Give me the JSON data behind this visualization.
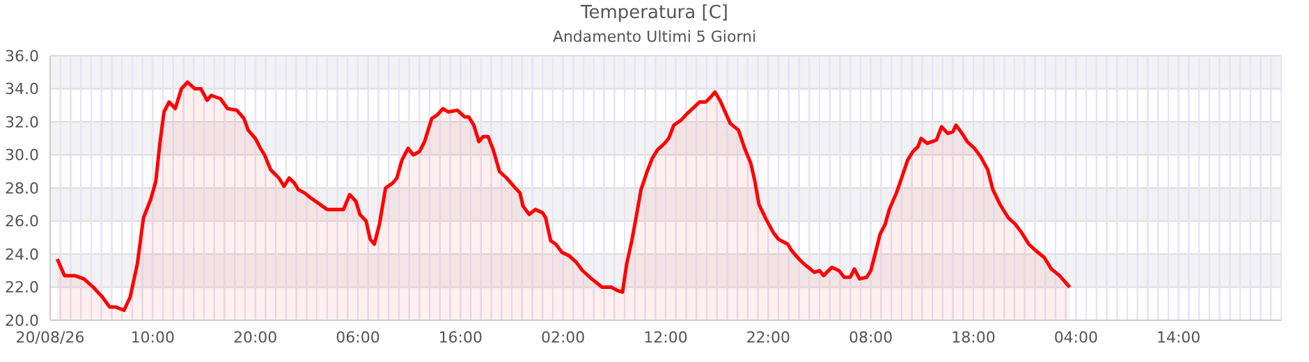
{
  "chart_data": {
    "type": "area",
    "title": "Temperatura [C]",
    "subtitle": "Andamento Ultimi 5 Giorni",
    "x": [
      "--08-20T00:42",
      "--08-20T01:24",
      "--08-20T02:24",
      "--08-20T03:18",
      "--08-20T04:12",
      "--08-20T05:06",
      "--08-20T05:48",
      "--08-20T06:24",
      "--08-20T07:12",
      "--08-20T07:48",
      "--08-20T08:30",
      "--08-20T09:06",
      "--08-20T09:48",
      "--08-20T10:18",
      "--08-20T10:42",
      "--08-20T11:06",
      "--08-20T11:36",
      "--08-20T12:12",
      "--08-20T12:48",
      "--08-20T13:24",
      "--08-20T14:06",
      "--08-20T14:42",
      "--08-20T15:18",
      "--08-20T15:42",
      "--08-20T16:36",
      "--08-20T17:18",
      "--08-20T18:12",
      "--08-20T18:54",
      "--08-20T19:18",
      "--08-20T20:00",
      "--08-20T20:30",
      "--08-20T20:54",
      "--08-20T21:30",
      "--08-20T22:18",
      "--08-20T22:48",
      "--08-20T23:18",
      "--08-20T23:48",
      "--08-21T00:12",
      "--08-21T00:48",
      "--08-21T01:24",
      "--08-21T02:06",
      "--08-21T03:00",
      "--08-21T04:36",
      "--08-21T05:12",
      "--08-21T05:48",
      "--08-21T06:12",
      "--08-21T06:48",
      "--08-21T07:12",
      "--08-21T07:36",
      "--08-21T08:06",
      "--08-21T08:42",
      "--08-21T09:24",
      "--08-21T09:48",
      "--08-21T10:18",
      "--08-21T10:54",
      "--08-21T11:24",
      "--08-21T12:00",
      "--08-21T12:30",
      "--08-21T13:12",
      "--08-21T13:42",
      "--08-21T14:18",
      "--08-21T14:48",
      "--08-21T15:42",
      "--08-21T16:24",
      "--08-21T16:48",
      "--08-21T17:18",
      "--08-21T17:48",
      "--08-21T18:12",
      "--08-21T18:42",
      "--08-21T19:12",
      "--08-21T19:48",
      "--08-21T20:30",
      "--08-21T21:12",
      "--08-21T21:48",
      "--08-21T22:06",
      "--08-21T22:42",
      "--08-21T23:18",
      "--08-22T00:00",
      "--08-22T00:18",
      "--08-22T00:48",
      "--08-22T01:18",
      "--08-22T01:54",
      "--08-22T02:36",
      "--08-22T03:18",
      "--08-22T03:54",
      "--08-22T04:48",
      "--08-22T05:48",
      "--08-22T06:42",
      "--08-22T07:18",
      "--08-22T07:48",
      "--08-22T08:12",
      "--08-22T08:42",
      "--08-22T09:12",
      "--08-22T09:36",
      "--08-22T10:12",
      "--08-22T10:42",
      "--08-22T11:12",
      "--08-22T11:54",
      "--08-22T12:18",
      "--08-22T12:48",
      "--08-22T13:30",
      "--08-22T14:06",
      "--08-22T14:48",
      "--08-22T15:18",
      "--08-22T15:54",
      "--08-22T16:24",
      "--08-22T16:48",
      "--08-22T17:18",
      "--08-22T17:48",
      "--08-22T18:18",
      "--08-22T19:06",
      "--08-22T19:42",
      "--08-22T20:18",
      "--08-22T20:42",
      "--08-22T21:06",
      "--08-22T21:48",
      "--08-22T22:30",
      "--08-22T23:00",
      "--08-22T23:54",
      "--08-23T00:18",
      "--08-23T01:00",
      "--08-23T01:30",
      "--08-23T01:54",
      "--08-23T02:30",
      "--08-23T03:00",
      "--08-23T03:24",
      "--08-23T04:12",
      "--08-23T04:54",
      "--08-23T05:24",
      "--08-23T06:00",
      "--08-23T06:24",
      "--08-23T06:54",
      "--08-23T07:36",
      "--08-23T08:00",
      "--08-23T08:30",
      "--08-23T08:54",
      "--08-23T09:24",
      "--08-23T09:48",
      "--08-23T10:30",
      "--08-23T11:00",
      "--08-23T11:36",
      "--08-23T12:06",
      "--08-23T12:36",
      "--08-23T12:54",
      "--08-23T13:30",
      "--08-23T14:24",
      "--08-23T14:54",
      "--08-23T15:30",
      "--08-23T16:00",
      "--08-23T16:18",
      "--08-23T16:54",
      "--08-23T17:24",
      "--08-23T18:06",
      "--08-23T18:42",
      "--08-23T19:24",
      "--08-23T19:54",
      "--08-23T20:36",
      "--08-23T21:24",
      "--08-23T22:06",
      "--08-23T22:42",
      "--08-23T23:24",
      "--08-24T00:06",
      "--08-24T00:54",
      "--08-24T01:36",
      "--08-24T02:24",
      "--08-24T03:06",
      "--08-24T03:24"
    ],
    "series": [
      {
        "color": "#ff0000",
        "values": [
          23.7,
          22.7,
          22.7,
          22.5,
          22.0,
          21.4,
          20.8,
          20.8,
          20.6,
          21.4,
          23.4,
          26.2,
          27.3,
          28.4,
          30.7,
          32.6,
          33.2,
          32.8,
          34.0,
          34.4,
          34.0,
          34.0,
          33.3,
          33.6,
          33.4,
          32.8,
          32.7,
          32.2,
          31.5,
          31.0,
          30.4,
          30.0,
          29.1,
          28.6,
          28.1,
          28.6,
          28.3,
          27.9,
          27.7,
          27.4,
          27.1,
          26.7,
          26.7,
          27.6,
          27.2,
          26.4,
          26.0,
          24.9,
          24.6,
          25.8,
          28.0,
          28.3,
          28.6,
          29.7,
          30.4,
          30.0,
          30.2,
          30.8,
          32.2,
          32.4,
          32.8,
          32.6,
          32.7,
          32.3,
          32.3,
          31.8,
          30.8,
          31.1,
          31.1,
          30.3,
          29.0,
          28.6,
          28.1,
          27.7,
          26.9,
          26.4,
          26.7,
          26.5,
          26.2,
          24.8,
          24.6,
          24.1,
          23.9,
          23.5,
          23.0,
          22.5,
          22.0,
          22.0,
          21.8,
          21.7,
          23.4,
          24.8,
          26.5,
          27.9,
          29.0,
          29.8,
          30.3,
          30.7,
          31.0,
          31.8,
          32.1,
          32.5,
          32.9,
          33.2,
          33.2,
          33.5,
          33.8,
          33.3,
          32.6,
          31.9,
          31.5,
          30.4,
          29.5,
          28.4,
          27.0,
          26.1,
          25.3,
          24.9,
          24.6,
          24.2,
          23.7,
          23.4,
          23.2,
          22.9,
          23.0,
          22.7,
          23.2,
          23.0,
          22.6,
          22.6,
          23.1,
          22.5,
          22.6,
          23.0,
          24.2,
          25.2,
          25.8,
          26.7,
          27.7,
          28.6,
          29.7,
          30.2,
          30.5,
          31.0,
          30.7,
          30.9,
          31.7,
          31.3,
          31.4,
          31.8,
          31.3,
          30.8,
          30.4,
          29.9,
          29.1,
          27.9,
          27.0,
          26.2,
          25.8,
          25.3,
          24.6,
          24.2,
          23.8,
          23.1,
          22.7,
          22.2,
          22.0
        ]
      }
    ],
    "xlim": [
      "--08-20T00:00",
      "--08-25T00:00"
    ],
    "xticks": [
      {
        "value": "--08-20T00:00",
        "label": "20/08/26"
      },
      {
        "value": "--08-20T01:00",
        "label": null
      },
      {
        "value": "--08-20T02:00",
        "label": null
      },
      {
        "value": "--08-20T03:00",
        "label": null
      },
      {
        "value": "--08-20T04:00",
        "label": null
      },
      {
        "value": "--08-20T05:00",
        "label": null
      },
      {
        "value": "--08-20T06:00",
        "label": null
      },
      {
        "value": "--08-20T07:00",
        "label": null
      },
      {
        "value": "--08-20T08:00",
        "label": null
      },
      {
        "value": "--08-20T09:00",
        "label": null
      },
      {
        "value": "--08-20T10:00",
        "label": "10:00"
      },
      {
        "value": "--08-20T11:00",
        "label": null
      },
      {
        "value": "--08-20T12:00",
        "label": null
      },
      {
        "value": "--08-20T13:00",
        "label": null
      },
      {
        "value": "--08-20T14:00",
        "label": null
      },
      {
        "value": "--08-20T15:00",
        "label": null
      },
      {
        "value": "--08-20T16:00",
        "label": null
      },
      {
        "value": "--08-20T17:00",
        "label": null
      },
      {
        "value": "--08-20T18:00",
        "label": null
      },
      {
        "value": "--08-20T19:00",
        "label": null
      },
      {
        "value": "--08-20T20:00",
        "label": "20:00"
      },
      {
        "value": "--08-20T21:00",
        "label": null
      },
      {
        "value": "--08-20T22:00",
        "label": null
      },
      {
        "value": "--08-20T23:00",
        "label": null
      },
      {
        "value": "--08-21T00:00",
        "label": null
      },
      {
        "value": "--08-21T01:00",
        "label": null
      },
      {
        "value": "--08-21T02:00",
        "label": null
      },
      {
        "value": "--08-21T03:00",
        "label": null
      },
      {
        "value": "--08-21T04:00",
        "label": null
      },
      {
        "value": "--08-21T05:00",
        "label": null
      },
      {
        "value": "--08-21T06:00",
        "label": "06:00"
      },
      {
        "value": "--08-21T07:00",
        "label": null
      },
      {
        "value": "--08-21T08:00",
        "label": null
      },
      {
        "value": "--08-21T09:00",
        "label": null
      },
      {
        "value": "--08-21T10:00",
        "label": null
      },
      {
        "value": "--08-21T11:00",
        "label": null
      },
      {
        "value": "--08-21T12:00",
        "label": null
      },
      {
        "value": "--08-21T13:00",
        "label": null
      },
      {
        "value": "--08-21T14:00",
        "label": null
      },
      {
        "value": "--08-21T15:00",
        "label": null
      },
      {
        "value": "--08-21T16:00",
        "label": "16:00"
      },
      {
        "value": "--08-21T17:00",
        "label": null
      },
      {
        "value": "--08-21T18:00",
        "label": null
      },
      {
        "value": "--08-21T19:00",
        "label": null
      },
      {
        "value": "--08-21T20:00",
        "label": null
      },
      {
        "value": "--08-21T21:00",
        "label": null
      },
      {
        "value": "--08-21T22:00",
        "label": null
      },
      {
        "value": "--08-21T23:00",
        "label": null
      },
      {
        "value": "--08-22T00:00",
        "label": null
      },
      {
        "value": "--08-22T01:00",
        "label": null
      },
      {
        "value": "--08-22T02:00",
        "label": "02:00"
      },
      {
        "value": "--08-22T03:00",
        "label": null
      },
      {
        "value": "--08-22T04:00",
        "label": null
      },
      {
        "value": "--08-22T05:00",
        "label": null
      },
      {
        "value": "--08-22T06:00",
        "label": null
      },
      {
        "value": "--08-22T07:00",
        "label": null
      },
      {
        "value": "--08-22T08:00",
        "label": null
      },
      {
        "value": "--08-22T09:00",
        "label": null
      },
      {
        "value": "--08-22T10:00",
        "label": null
      },
      {
        "value": "--08-22T11:00",
        "label": null
      },
      {
        "value": "--08-22T12:00",
        "label": "12:00"
      },
      {
        "value": "--08-22T13:00",
        "label": null
      },
      {
        "value": "--08-22T14:00",
        "label": null
      },
      {
        "value": "--08-22T15:00",
        "label": null
      },
      {
        "value": "--08-22T16:00",
        "label": null
      },
      {
        "value": "--08-22T17:00",
        "label": null
      },
      {
        "value": "--08-22T18:00",
        "label": null
      },
      {
        "value": "--08-22T19:00",
        "label": null
      },
      {
        "value": "--08-22T20:00",
        "label": null
      },
      {
        "value": "--08-22T21:00",
        "label": null
      },
      {
        "value": "--08-22T22:00",
        "label": "22:00"
      },
      {
        "value": "--08-22T23:00",
        "label": null
      },
      {
        "value": "--08-23T00:00",
        "label": null
      },
      {
        "value": "--08-23T01:00",
        "label": null
      },
      {
        "value": "--08-23T02:00",
        "label": null
      },
      {
        "value": "--08-23T03:00",
        "label": null
      },
      {
        "value": "--08-23T04:00",
        "label": null
      },
      {
        "value": "--08-23T05:00",
        "label": null
      },
      {
        "value": "--08-23T06:00",
        "label": null
      },
      {
        "value": "--08-23T07:00",
        "label": null
      },
      {
        "value": "--08-23T08:00",
        "label": "08:00"
      },
      {
        "value": "--08-23T09:00",
        "label": null
      },
      {
        "value": "--08-23T10:00",
        "label": null
      },
      {
        "value": "--08-23T11:00",
        "label": null
      },
      {
        "value": "--08-23T12:00",
        "label": null
      },
      {
        "value": "--08-23T13:00",
        "label": null
      },
      {
        "value": "--08-23T14:00",
        "label": null
      },
      {
        "value": "--08-23T15:00",
        "label": null
      },
      {
        "value": "--08-23T16:00",
        "label": null
      },
      {
        "value": "--08-23T17:00",
        "label": null
      },
      {
        "value": "--08-23T18:00",
        "label": "18:00"
      },
      {
        "value": "--08-23T19:00",
        "label": null
      },
      {
        "value": "--08-23T20:00",
        "label": null
      },
      {
        "value": "--08-23T21:00",
        "label": null
      },
      {
        "value": "--08-23T22:00",
        "label": null
      },
      {
        "value": "--08-23T23:00",
        "label": null
      },
      {
        "value": "--08-24T00:00",
        "label": null
      },
      {
        "value": "--08-24T01:00",
        "label": null
      },
      {
        "value": "--08-24T02:00",
        "label": null
      },
      {
        "value": "--08-24T03:00",
        "label": null
      },
      {
        "value": "--08-24T04:00",
        "label": "04:00"
      },
      {
        "value": "--08-24T05:00",
        "label": null
      },
      {
        "value": "--08-24T06:00",
        "label": null
      },
      {
        "value": "--08-24T07:00",
        "label": null
      },
      {
        "value": "--08-24T08:00",
        "label": null
      },
      {
        "value": "--08-24T09:00",
        "label": null
      },
      {
        "value": "--08-24T10:00",
        "label": null
      },
      {
        "value": "--08-24T11:00",
        "label": null
      },
      {
        "value": "--08-24T12:00",
        "label": null
      },
      {
        "value": "--08-24T13:00",
        "label": null
      },
      {
        "value": "--08-24T14:00",
        "label": "14:00"
      },
      {
        "value": "--08-24T15:00",
        "label": null
      },
      {
        "value": "--08-24T16:00",
        "label": null
      },
      {
        "value": "--08-24T17:00",
        "label": null
      },
      {
        "value": "--08-24T18:00",
        "label": null
      },
      {
        "value": "--08-24T19:00",
        "label": null
      },
      {
        "value": "--08-24T20:00",
        "label": null
      },
      {
        "value": "--08-24T21:00",
        "label": null
      },
      {
        "value": "--08-24T22:00",
        "label": null
      },
      {
        "value": "--08-24T23:00",
        "label": null
      },
      {
        "value": "--08-25T00:00",
        "label": null
      }
    ],
    "ylim": [
      20,
      36
    ],
    "yticks": [
      {
        "value": 20,
        "label": "20.0"
      },
      {
        "value": 22,
        "label": "22.0"
      },
      {
        "value": 24,
        "label": "24.0"
      },
      {
        "value": 26,
        "label": "26.0"
      },
      {
        "value": 28,
        "label": "28.0"
      },
      {
        "value": 30,
        "label": "30.0"
      },
      {
        "value": 32,
        "label": "32.0"
      },
      {
        "value": 34,
        "label": "34.0"
      },
      {
        "value": 36,
        "label": "36.0"
      }
    ],
    "grid": true
  }
}
